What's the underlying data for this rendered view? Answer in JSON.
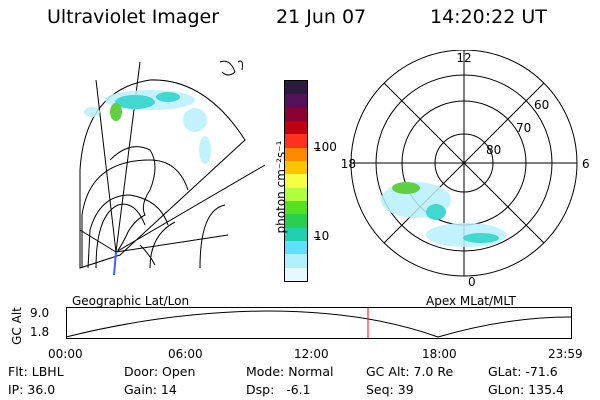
{
  "header": {
    "title": "Ultraviolet Imager",
    "date": "21 Jun 07",
    "time": "14:20:22 UT"
  },
  "geo_panel": {
    "caption": "Geographic Lat/Lon"
  },
  "polar_panel": {
    "caption": "Apex MLat/MLT",
    "mlt_labels": {
      "top": "12",
      "left": "18",
      "right": "6",
      "bottom": "0"
    },
    "lat_labels": [
      "60",
      "70",
      "80"
    ]
  },
  "colorbar": {
    "unit_label": "photon cm⁻²s⁻¹",
    "tick_labels": [
      "100",
      "10"
    ],
    "colors": [
      "#2d1b3d",
      "#55105a",
      "#8a0030",
      "#c00010",
      "#ff3020",
      "#ff8a00",
      "#ffc400",
      "#f6ff40",
      "#b0ff40",
      "#55e020",
      "#28d050",
      "#20d0b0",
      "#60e0ff",
      "#b0f0ff",
      "#e8f8ff"
    ]
  },
  "altitude_plot": {
    "ylabel": "GC Alt",
    "yticks": [
      "9.0",
      "1.8"
    ],
    "xticks": [
      "00:00",
      "06:00",
      "12:00",
      "18:00",
      "23:59"
    ],
    "current_time_marker": "14:20",
    "marker_color": "#ff0000"
  },
  "info": {
    "flt": "Flt: LBHL",
    "ip": "IP: 36.0",
    "door": "Door: Open",
    "gain": "Gain: 14",
    "mode": "Mode: Normal",
    "dsp": "Dsp:   -6.1",
    "gc_alt": "GC Alt: 7.0 Re",
    "seq": "Seq: 39",
    "glat": "GLat: -71.6",
    "glon": "GLon: 135.4"
  }
}
